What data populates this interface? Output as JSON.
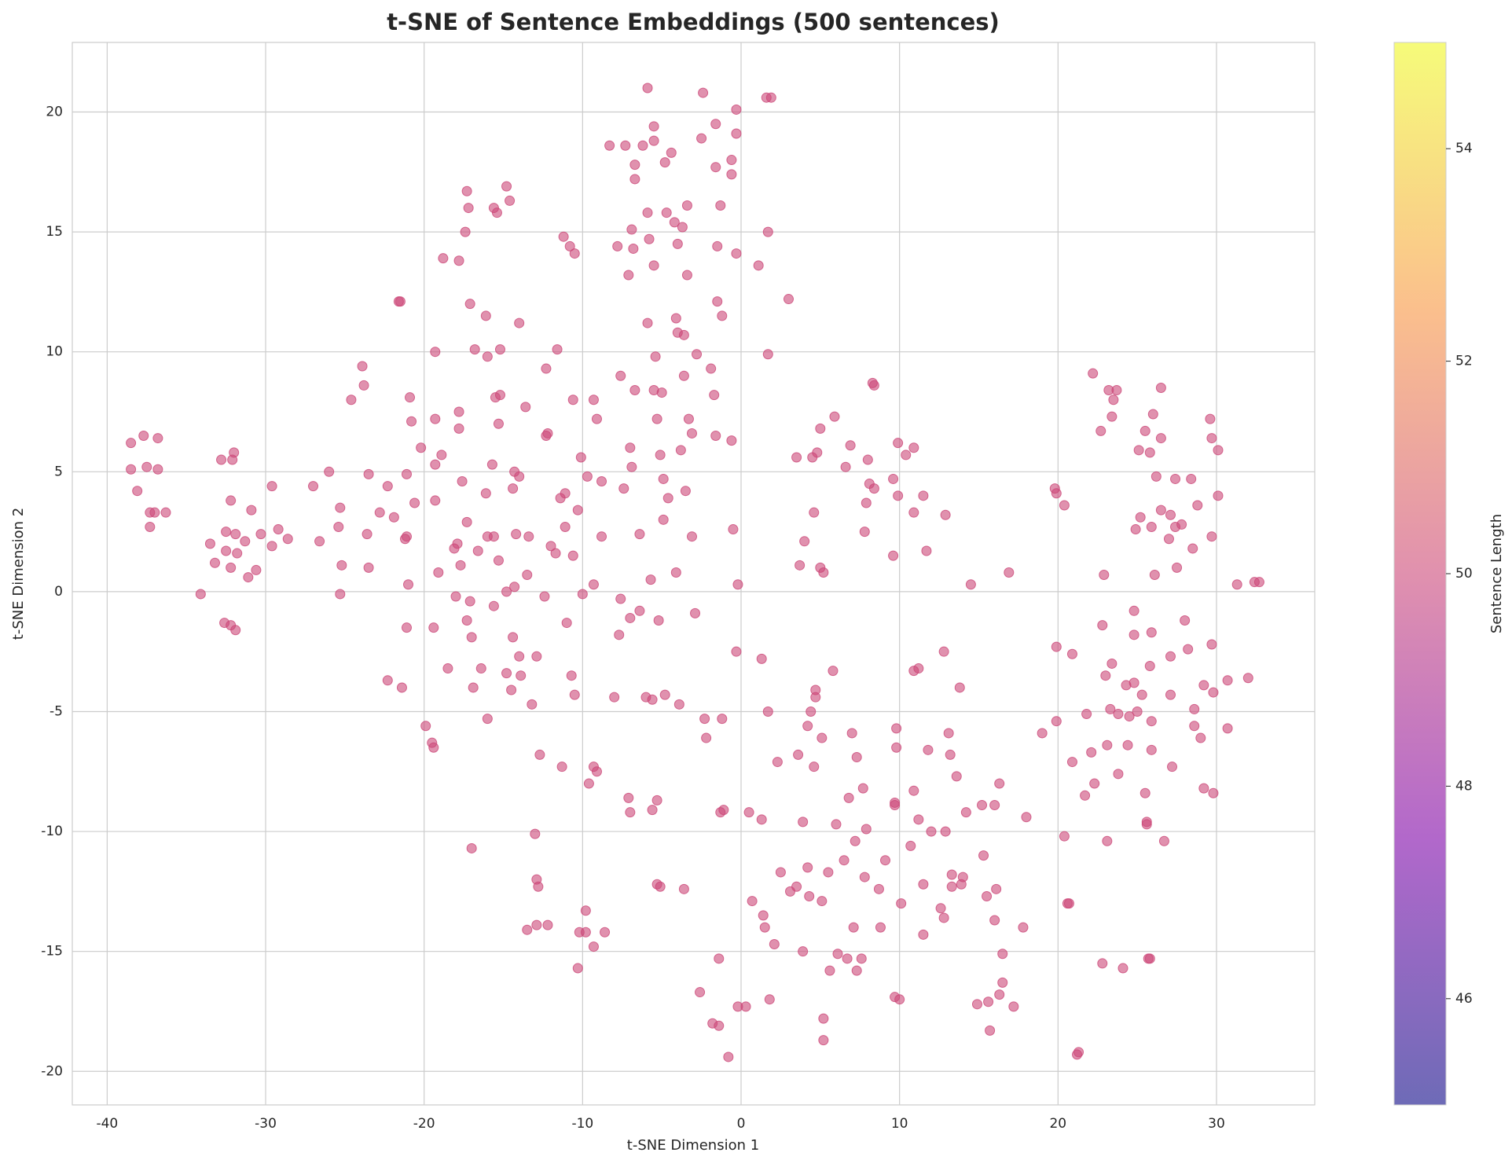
{
  "chart_data": {
    "type": "scatter",
    "title": "t-SNE of Sentence Embeddings (500 sentences)",
    "xlabel": "t-SNE Dimension 1",
    "ylabel": "t-SNE Dimension 2",
    "xlim": [
      -42.2,
      36.2
    ],
    "ylim": [
      -21.4,
      22.9
    ],
    "xticks": [
      -40,
      -30,
      -20,
      -10,
      0,
      10,
      20,
      30
    ],
    "yticks": [
      -20,
      -15,
      -10,
      -5,
      0,
      5,
      10,
      15,
      20
    ],
    "grid": true,
    "color": "#cc4778",
    "colorbar": {
      "label": "Sentence Length",
      "lim": [
        45,
        55
      ],
      "ticks": [
        46,
        48,
        50,
        52,
        54
      ],
      "colormap": "plasma"
    },
    "x": [
      -38.5,
      -37.7,
      -36.8,
      -38.5,
      -37.5,
      -36.8,
      -38.1,
      -37.3,
      -37.0,
      -36.3,
      -37.3,
      -34.1,
      -33.5,
      -32.8,
      -32.0,
      -32.1,
      -32.2,
      -32.5,
      -31.9,
      -31.3,
      -30.9,
      -32.5,
      -31.8,
      -33.2,
      -32.2,
      -30.6,
      -31.1,
      -30.3,
      -29.6,
      -29.6,
      -29.2,
      -28.6,
      -32.6,
      -32.2,
      -31.9,
      -27.0,
      -26.0,
      -26.6,
      -25.3,
      -25.4,
      -25.2,
      -25.3,
      -23.5,
      -23.6,
      -23.5,
      -22.8,
      -22.3,
      -21.9,
      -23.9,
      -23.8,
      -24.6,
      -21.6,
      -21.5,
      -21.1,
      -21.2,
      -21.1,
      -21.0,
      -21.1,
      -22.3,
      -21.4,
      -20.9,
      -20.8,
      -20.6,
      -20.2,
      -19.3,
      -19.3,
      -19.3,
      -19.3,
      -19.1,
      -19.4,
      -19.9,
      -19.5,
      -19.4,
      -18.9,
      -18.8,
      -18.5,
      -18.1,
      -17.9,
      -18.0,
      -17.8,
      -17.8,
      -17.8,
      -17.6,
      -17.7,
      -17.4,
      -17.3,
      -17.2,
      -17.1,
      -17.3,
      -17.1,
      -17.3,
      -17.0,
      -16.9,
      -17.0,
      -16.8,
      -16.6,
      -16.4,
      -16.1,
      -16.0,
      -16.1,
      -16.0,
      -16.0,
      -15.6,
      -15.4,
      -15.5,
      -15.2,
      -15.2,
      -15.3,
      -15.7,
      -15.6,
      -15.3,
      -15.6,
      -14.8,
      -14.6,
      -14.8,
      -14.8,
      -14.5,
      -14.4,
      -14.3,
      -14.4,
      -14.0,
      -14.2,
      -14.3,
      -14.0,
      -13.9,
      -14.0,
      -13.6,
      -13.4,
      -13.5,
      -13.5,
      -13.2,
      -12.9,
      -13.0,
      -12.9,
      -12.8,
      -12.9,
      -12.7,
      -12.3,
      -12.3,
      -12.2,
      -12.0,
      -12.4,
      -12.2,
      -11.6,
      -11.7,
      -11.4,
      -11.1,
      -11.1,
      -11.0,
      -11.3,
      -11.2,
      -10.8,
      -10.5,
      -10.6,
      -10.6,
      -10.7,
      -10.5,
      -10.3,
      -10.1,
      -10.0,
      -10.2,
      -10.3,
      -9.7,
      -9.8,
      -9.8,
      -9.6,
      -9.3,
      -9.3,
      -9.1,
      -9.3,
      -9.1,
      -9.3,
      -8.8,
      -8.8,
      -8.6,
      -8.3,
      -8.0,
      -7.8,
      -7.7,
      -7.6,
      -7.6,
      -7.4,
      -7.3,
      -7.1,
      -7.0,
      -6.9,
      -6.9,
      -7.0,
      -7.1,
      -7.0,
      -6.8,
      -6.7,
      -6.7,
      -6.7,
      -6.4,
      -6.4,
      -6.2,
      -5.9,
      -5.9,
      -5.8,
      -5.9,
      -6.0,
      -5.7,
      -5.6,
      -5.6,
      -5.5,
      -5.5,
      -5.5,
      -5.5,
      -5.4,
      -5.3,
      -5.3,
      -5.3,
      -5.1,
      -5.1,
      -5.2,
      -5.0,
      -4.9,
      -4.9,
      -4.8,
      -4.8,
      -4.7,
      -4.6,
      -4.4,
      -4.2,
      -4.1,
      -4.0,
      -4.0,
      -4.1,
      -3.9,
      -3.8,
      -3.7,
      -3.6,
      -3.6,
      -3.6,
      -3.5,
      -3.4,
      -3.4,
      -3.3,
      -3.1,
      -3.1,
      -2.9,
      -2.8,
      -2.6,
      -2.5,
      -2.4,
      -2.3,
      -2.2,
      -1.9,
      -1.8,
      -1.7,
      -1.6,
      -1.6,
      -1.6,
      -1.5,
      -1.5,
      -1.4,
      -1.4,
      -1.3,
      -1.3,
      -1.2,
      -1.2,
      -1.1,
      -0.8,
      -0.6,
      -0.6,
      -0.6,
      -0.5,
      -0.3,
      -0.3,
      -0.3,
      -0.3,
      -0.2,
      -0.2,
      0.3,
      0.5,
      0.7,
      1.1,
      1.3,
      1.3,
      1.4,
      1.5,
      1.6,
      1.9,
      1.7,
      1.7,
      1.7,
      1.8,
      2.1,
      2.3,
      2.5,
      3.0,
      3.1,
      3.5,
      3.5,
      3.6,
      3.7,
      3.9,
      3.9,
      4.0,
      4.2,
      4.2,
      4.3,
      4.4,
      4.5,
      4.6,
      4.7,
      4.7,
      4.6,
      4.8,
      5.0,
      5.0,
      5.2,
      5.1,
      5.1,
      5.2,
      5.2,
      5.5,
      5.6,
      5.8,
      5.9,
      6.0,
      6.1,
      6.5,
      6.6,
      6.7,
      6.8,
      6.9,
      7.0,
      7.1,
      7.2,
      7.3,
      7.3,
      7.6,
      7.7,
      7.8,
      7.8,
      7.9,
      7.9,
      8.0,
      8.1,
      8.3,
      8.4,
      8.4,
      8.7,
      8.8,
      9.1,
      9.6,
      9.6,
      9.7,
      9.7,
      9.7,
      9.8,
      9.8,
      9.9,
      9.9,
      10.0,
      10.1,
      10.4,
      10.7,
      10.9,
      10.9,
      10.9,
      10.9,
      11.2,
      11.2,
      11.5,
      11.5,
      11.5,
      11.7,
      11.8,
      12.0,
      12.6,
      12.8,
      12.8,
      12.9,
      12.9,
      13.1,
      13.2,
      13.3,
      13.3,
      13.6,
      13.8,
      13.9,
      14.0,
      14.2,
      14.5,
      14.9,
      15.2,
      15.3,
      15.5,
      15.6,
      15.7,
      16.0,
      16.0,
      16.1,
      16.3,
      16.3,
      16.5,
      16.5,
      16.9,
      17.2,
      17.8,
      18.0,
      19.0,
      19.8,
      19.9,
      19.9,
      19.9,
      20.4,
      20.4,
      20.6,
      20.7,
      20.9,
      20.9,
      21.2,
      21.3,
      21.7,
      21.8,
      22.1,
      22.2,
      22.3,
      22.7,
      22.8,
      22.8,
      22.9,
      23.0,
      23.1,
      23.1,
      23.2,
      23.3,
      23.4,
      23.5,
      23.4,
      23.7,
      23.8,
      23.8,
      24.1,
      24.3,
      24.4,
      24.5,
      24.8,
      24.8,
      24.8,
      24.9,
      25.0,
      25.1,
      25.2,
      25.3,
      25.5,
      25.5,
      25.6,
      25.6,
      25.7,
      25.8,
      25.8,
      25.8,
      25.9,
      25.9,
      25.9,
      25.9,
      26.0,
      26.1,
      26.2,
      26.5,
      26.5,
      26.5,
      26.7,
      27.0,
      27.1,
      27.1,
      27.1,
      27.2,
      27.4,
      27.4,
      27.5,
      27.8,
      28.0,
      28.2,
      28.4,
      28.5,
      28.6,
      28.6,
      28.8,
      29.0,
      29.2,
      29.2,
      29.6,
      29.7,
      29.7,
      29.7,
      29.8,
      29.8,
      30.1,
      30.1,
      30.7,
      30.7,
      31.3,
      32.0,
      32.4,
      32.7
    ],
    "y": [
      6.2,
      6.5,
      6.4,
      5.1,
      5.2,
      5.1,
      4.2,
      3.3,
      3.3,
      3.3,
      2.7,
      -0.1,
      2.0,
      5.5,
      5.8,
      5.5,
      3.8,
      2.5,
      2.4,
      2.1,
      3.4,
      1.7,
      1.6,
      1.2,
      1.0,
      0.9,
      0.6,
      2.4,
      1.9,
      4.4,
      2.6,
      2.2,
      -1.3,
      -1.4,
      -1.6,
      4.4,
      5.0,
      2.1,
      3.5,
      2.7,
      1.1,
      -0.1,
      4.9,
      2.4,
      1.0,
      3.3,
      4.4,
      3.1,
      9.4,
      8.6,
      8.0,
      12.1,
      12.1,
      4.9,
      2.2,
      2.3,
      0.3,
      -1.5,
      -3.7,
      -4.0,
      8.1,
      7.1,
      3.7,
      6.0,
      10.0,
      7.2,
      5.3,
      3.8,
      0.8,
      -1.5,
      -5.6,
      -6.3,
      -6.5,
      5.7,
      13.9,
      -3.2,
      1.8,
      2.0,
      -0.2,
      13.8,
      7.5,
      6.8,
      4.6,
      1.1,
      15.0,
      16.7,
      16.0,
      12.0,
      2.9,
      -0.4,
      -1.2,
      -1.9,
      -4.0,
      -10.7,
      10.1,
      1.7,
      -3.2,
      11.5,
      9.8,
      4.1,
      2.3,
      -5.3,
      16.0,
      15.8,
      8.1,
      8.2,
      10.1,
      7.0,
      5.3,
      2.3,
      1.3,
      -0.6,
      16.9,
      16.3,
      0.0,
      -3.4,
      -4.1,
      -1.9,
      5.0,
      4.3,
      4.8,
      2.4,
      0.2,
      -2.7,
      -3.5,
      11.2,
      7.7,
      2.3,
      0.7,
      -14.1,
      -4.7,
      -2.7,
      -10.1,
      -12.0,
      -12.3,
      -13.9,
      -6.8,
      9.3,
      6.5,
      6.6,
      1.9,
      -0.2,
      -13.9,
      10.1,
      1.6,
      3.9,
      4.1,
      2.7,
      -1.3,
      -7.3,
      14.8,
      14.4,
      14.1,
      8.0,
      1.5,
      -3.5,
      -4.3,
      3.4,
      5.6,
      -0.1,
      -14.2,
      -15.7,
      4.8,
      -13.3,
      -14.2,
      -8.0,
      8.0,
      0.3,
      7.2,
      -7.3,
      -7.5,
      -14.8,
      4.6,
      2.3,
      -14.2,
      18.6,
      -4.4,
      14.4,
      -1.8,
      -0.3,
      9.0,
      4.3,
      18.6,
      13.2,
      6.0,
      5.2,
      15.1,
      -1.1,
      -8.6,
      -9.2,
      14.3,
      17.2,
      17.8,
      8.4,
      2.4,
      -0.8,
      18.6,
      21.0,
      15.8,
      14.7,
      11.2,
      -4.4,
      0.5,
      -4.5,
      -9.1,
      19.4,
      18.8,
      13.6,
      8.4,
      9.8,
      7.2,
      -8.7,
      -12.2,
      -12.3,
      5.7,
      -1.2,
      8.3,
      4.7,
      3.0,
      -4.3,
      17.9,
      15.8,
      3.9,
      18.3,
      15.4,
      11.4,
      10.8,
      14.5,
      0.8,
      -4.7,
      5.9,
      15.2,
      -12.4,
      10.7,
      9.0,
      4.2,
      13.2,
      16.1,
      7.2,
      6.6,
      2.3,
      -0.9,
      9.9,
      -16.7,
      18.9,
      20.8,
      -5.3,
      -6.1,
      9.3,
      -18.0,
      8.2,
      6.5,
      19.5,
      17.7,
      14.4,
      12.1,
      -15.3,
      -18.1,
      -9.2,
      16.1,
      11.5,
      -5.3,
      -9.1,
      -19.4,
      18.0,
      17.4,
      6.3,
      2.6,
      20.1,
      19.1,
      14.1,
      -2.5,
      0.3,
      -17.3,
      -17.3,
      -9.2,
      -12.9,
      13.6,
      -2.8,
      -9.5,
      -13.5,
      -14.0,
      20.6,
      20.6,
      15.0,
      9.9,
      -5.0,
      -17.0,
      -14.7,
      -7.1,
      -11.7,
      12.2,
      -12.5,
      5.6,
      -12.3,
      -6.8,
      1.1,
      -9.6,
      -15.0,
      2.1,
      -5.6,
      -11.5,
      -12.7,
      -5.0,
      5.6,
      3.3,
      -4.1,
      -4.4,
      -7.3,
      5.8,
      6.8,
      1.0,
      0.8,
      -6.1,
      -12.9,
      -17.8,
      -18.7,
      -11.7,
      -15.8,
      -3.3,
      7.3,
      -9.7,
      -15.1,
      -11.2,
      5.2,
      -15.3,
      -8.6,
      6.1,
      -5.9,
      -14.0,
      -10.4,
      -6.9,
      -15.8,
      -15.3,
      -8.2,
      -11.9,
      2.5,
      3.7,
      -9.9,
      5.5,
      4.5,
      8.7,
      8.6,
      4.3,
      -12.4,
      -14.0,
      -11.2,
      4.7,
      1.5,
      -8.8,
      -8.9,
      -16.9,
      -5.7,
      -6.5,
      6.2,
      4.0,
      -17.0,
      -13.0,
      5.7,
      -10.6,
      6.0,
      3.3,
      -8.3,
      -3.3,
      -3.2,
      -9.5,
      -12.2,
      -14.3,
      4.0,
      1.7,
      -6.6,
      -10.0,
      -13.2,
      -2.5,
      -13.6,
      3.2,
      -10.0,
      -5.9,
      -6.8,
      -12.3,
      -11.8,
      -7.7,
      -4.0,
      -12.2,
      -11.9,
      -9.2,
      0.3,
      -17.2,
      -8.9,
      -11.0,
      -12.7,
      -17.1,
      -18.3,
      -8.9,
      -13.7,
      -12.4,
      -8.0,
      -16.8,
      -16.3,
      -15.1,
      0.8,
      -17.3,
      -14.0,
      -9.4,
      -5.9,
      4.3,
      4.1,
      -2.3,
      -5.4,
      3.6,
      -10.2,
      -13.0,
      -13.0,
      -2.6,
      -7.1,
      -19.3,
      -19.2,
      -8.5,
      -5.1,
      -6.7,
      9.1,
      -8.0,
      6.7,
      -15.5,
      -1.4,
      0.7,
      -3.5,
      -6.4,
      -10.4,
      8.4,
      -4.9,
      7.3,
      8.0,
      -3.0,
      8.4,
      -5.1,
      -7.6,
      -15.7,
      -3.9,
      -6.4,
      -5.2,
      -0.8,
      -1.8,
      -3.8,
      2.6,
      -5.0,
      5.9,
      3.1,
      -4.3,
      -8.4,
      6.7,
      -9.6,
      -9.7,
      -15.3,
      -15.3,
      5.8,
      -3.1,
      -1.7,
      -5.4,
      -6.6,
      2.7,
      7.4,
      0.7,
      4.8,
      8.5,
      6.4,
      3.4,
      -10.4,
      2.2,
      3.2,
      -2.7,
      -4.3,
      -7.3,
      4.7,
      2.7,
      1.0,
      2.8,
      -1.2,
      -2.4,
      4.7,
      1.8,
      -4.9,
      -5.6,
      3.6,
      -6.1,
      -3.9,
      -8.2,
      7.2,
      6.4,
      2.3,
      -2.2,
      -8.4,
      -4.2,
      5.9,
      4.0,
      -3.7,
      -5.7,
      0.3,
      -3.6,
      0.4,
      0.4
    ]
  }
}
